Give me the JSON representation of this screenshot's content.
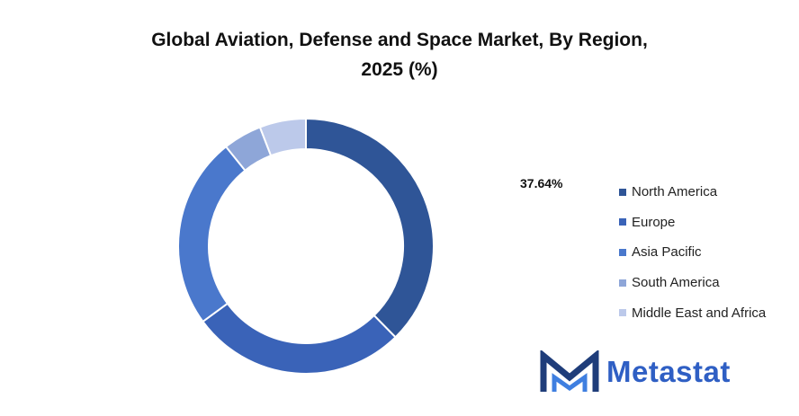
{
  "title_line1": "Global Aviation, Defense and Space Market, By Region,",
  "title_line2": "2025 (%)",
  "logo": {
    "text": "Metastat"
  },
  "chart_data": {
    "type": "pie",
    "donut": true,
    "title": "Global Aviation, Defense and Space Market, By Region, 2025 (%)",
    "categories": [
      "North America",
      "Europe",
      "Asia Pacific",
      "South America",
      "Middle East and Africa"
    ],
    "values": [
      37.64,
      27.3,
      24.3,
      4.9,
      5.86
    ],
    "colors": [
      "#2f5597",
      "#3a63b8",
      "#4a78cc",
      "#8ea6d8",
      "#bcc9ea"
    ],
    "annotations": [
      {
        "series": "North America",
        "text": "37.64%"
      }
    ],
    "legend_position": "right"
  }
}
